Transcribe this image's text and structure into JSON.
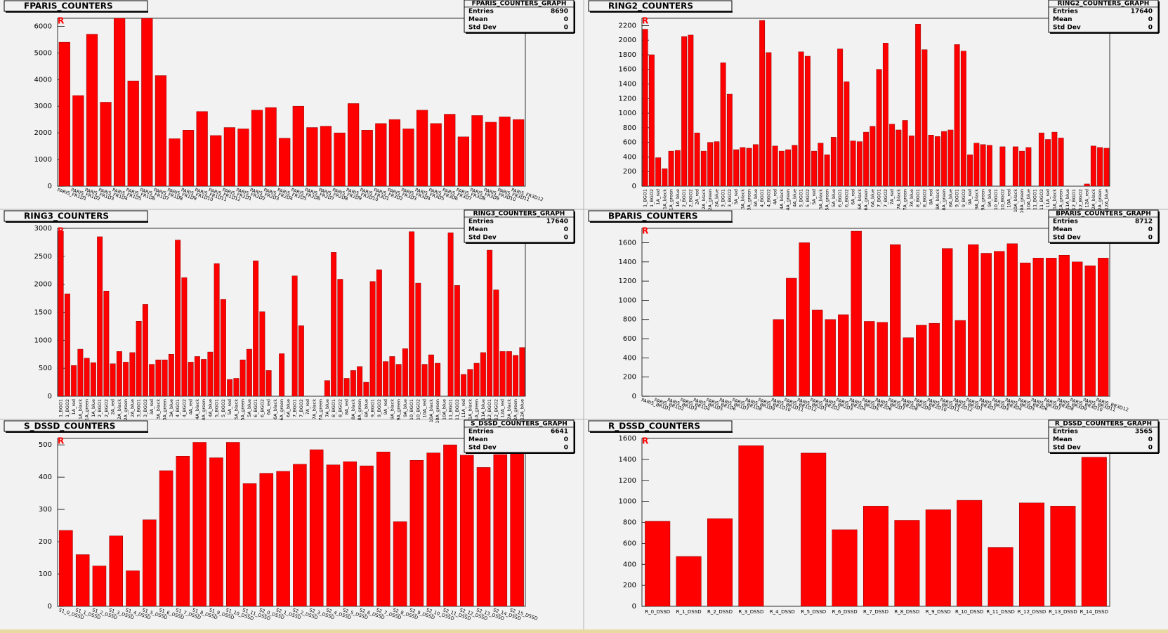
{
  "chart_data": [
    {
      "type": "bar",
      "title": "FPARIS_COUNTERS",
      "corner_mark": "R",
      "color": "#ff0000",
      "categories": [
        "PARIS_FR1D1",
        "PARIS_FR1D2",
        "PARIS_FR1D3",
        "PARIS_FR1D4",
        "PARIS_FR1D5",
        "PARIS_FR1D6",
        "PARIS_FR1D7",
        "PARIS_FR1D8",
        "PARIS_FR1D9",
        "PARIS_FR1D10",
        "PARIS_FR1D11",
        "PARIS_FR1D12",
        "PARIS_FR2D1",
        "PARIS_FR2D2",
        "PARIS_FR2D3",
        "PARIS_FR2D4",
        "PARIS_FR2D5",
        "PARIS_FR2D6",
        "PARIS_FR2D7",
        "PARIS_FR2D8",
        "PARIS_FR2D9",
        "PARIS_FR2D10",
        "PARIS_FR3D1",
        "PARIS_FR3D2",
        "PARIS_FR3D3",
        "PARIS_FR3D4",
        "PARIS_FR3D5",
        "PARIS_FR3D6",
        "PARIS_FR3D7",
        "PARIS_FR3D8",
        "PARIS_FR3D9",
        "PARIS_FR3D10",
        "PARIS_FR3D11",
        "PARIS_FR3D12"
      ],
      "values": [
        5400,
        3400,
        5700,
        3150,
        6300,
        3950,
        6300,
        4150,
        1780,
        2100,
        2800,
        1900,
        2200,
        2150,
        2850,
        2950,
        1800,
        3000,
        2200,
        2250,
        2000,
        3100,
        2100,
        2350,
        2500,
        2150,
        2850,
        2350,
        2700,
        1850,
        2650,
        2400,
        2600,
        2500
      ],
      "ylim": [
        0,
        6300
      ],
      "yticks": [
        0,
        1000,
        2000,
        3000,
        4000,
        5000,
        6000
      ],
      "stats": {
        "title": "FPARIS_COUNTERS_GRAPH",
        "labels": [
          "Entries",
          "Mean",
          "Std Dev"
        ],
        "values": [
          8690,
          0,
          0
        ]
      }
    },
    {
      "type": "bar",
      "title": "RING2_COUNTERS",
      "corner_mark": "R",
      "color": "#ff0000",
      "categories": [
        "1_BGO1",
        "1_BGO2",
        "1A_red",
        "1A_black",
        "1A_green",
        "1A_blue",
        "2_BGO1",
        "2_BGO2",
        "2A_red",
        "2A_black",
        "2A_green",
        "2A_blue",
        "3_BGO1",
        "3_BGO2",
        "3A_red",
        "3A_black",
        "3A_green",
        "3A_blue",
        "4_BGO1",
        "4_BGO2",
        "4A_red",
        "4A_black",
        "4A_green",
        "4A_blue",
        "5_BGO1",
        "5_BGO2",
        "5A_red",
        "5A_black",
        "5A_green",
        "5A_blue",
        "6_BGO1",
        "6_BGO2",
        "6A_red",
        "6A_black",
        "6A_green",
        "6A_blue",
        "7_BGO1",
        "7_BGO2",
        "7A_red",
        "7A_black",
        "7A_green",
        "7A_blue",
        "8_BGO1",
        "8_BGO2",
        "8A_red",
        "8A_black",
        "8A_green",
        "8A_blue",
        "9_BGO1",
        "9_BGO2",
        "9A_red",
        "9A_black",
        "9A_green",
        "9A_blue",
        "10_BGO1",
        "10_BGO2",
        "10A_red",
        "10A_black",
        "10A_green",
        "10A_blue",
        "11_BGO1",
        "11_BGO2",
        "11A_red",
        "11A_black",
        "11A_green",
        "11A_blue",
        "12_BGO1",
        "12_BGO2",
        "12A_red",
        "12A_black",
        "12A_green",
        "12A_blue"
      ],
      "values": [
        2150,
        1800,
        390,
        240,
        480,
        490,
        2050,
        2070,
        730,
        480,
        600,
        610,
        1690,
        1260,
        500,
        530,
        520,
        570,
        2270,
        1830,
        550,
        480,
        500,
        560,
        1840,
        1780,
        480,
        590,
        430,
        670,
        1880,
        1430,
        620,
        610,
        740,
        820,
        1600,
        1960,
        850,
        770,
        900,
        690,
        2220,
        1870,
        700,
        680,
        750,
        770,
        1940,
        1850,
        430,
        590,
        570,
        560,
        0,
        540,
        0,
        540,
        480,
        530,
        0,
        730,
        640,
        740,
        660,
        0,
        0,
        0,
        30,
        550,
        530,
        520
      ],
      "ylim": [
        0,
        2300
      ],
      "yticks": [
        0,
        200,
        400,
        600,
        800,
        1000,
        1200,
        1400,
        1600,
        1800,
        2000,
        2200
      ],
      "stats": {
        "title": "RING2_COUNTERS_GRAPH",
        "labels": [
          "Entries",
          "Mean",
          "Std Dev"
        ],
        "values": [
          17640,
          0,
          0
        ]
      }
    },
    {
      "type": "bar",
      "title": "RING3_COUNTERS",
      "corner_mark": "R",
      "color": "#ff0000",
      "categories": [
        "1_BGO1",
        "1_BGO2",
        "1A_red",
        "1A_black",
        "1A_green",
        "1A_blue",
        "2_BGO1",
        "2_BGO2",
        "2A_red",
        "2A_black",
        "2A_green",
        "2A_blue",
        "3_BGO1",
        "3_BGO2",
        "3A_red",
        "3A_black",
        "3A_green",
        "3A_blue",
        "4_BGO1",
        "4_BGO2",
        "4A_red",
        "4A_black",
        "4A_green",
        "4A_blue",
        "5_BGO1",
        "5_BGO2",
        "5A_red",
        "5A_black",
        "5A_green",
        "5A_blue",
        "6_BGO1",
        "6_BGO2",
        "6A_red",
        "6A_black",
        "6A_green",
        "6A_blue",
        "7_BGO1",
        "7_BGO2",
        "7A_red",
        "7A_black",
        "7A_green",
        "7A_blue",
        "8_BGO1",
        "8_BGO2",
        "8A_red",
        "8A_black",
        "8A_green",
        "8A_blue",
        "9_BGO1",
        "9_BGO2",
        "9A_red",
        "9A_black",
        "9A_green",
        "9A_blue",
        "10_BGO1",
        "10_BGO2",
        "10A_red",
        "10A_black",
        "10A_green",
        "10A_blue",
        "11_BGO1",
        "11_BGO2",
        "11A_red",
        "11A_black",
        "11A_green",
        "11A_blue",
        "12_BGO1",
        "12_BGO2",
        "12A_red",
        "12A_black",
        "12A_green",
        "12A_blue"
      ],
      "values": [
        2950,
        1830,
        550,
        840,
        680,
        600,
        2850,
        1880,
        580,
        800,
        610,
        780,
        1340,
        1640,
        570,
        650,
        650,
        750,
        2790,
        2120,
        610,
        710,
        660,
        790,
        2370,
        1730,
        300,
        320,
        650,
        840,
        2420,
        1510,
        460,
        0,
        760,
        0,
        2150,
        1260,
        0,
        0,
        0,
        280,
        2570,
        2090,
        320,
        460,
        530,
        250,
        2050,
        2260,
        620,
        710,
        570,
        850,
        2940,
        2020,
        570,
        740,
        590,
        0,
        2920,
        1980,
        390,
        480,
        590,
        780,
        2610,
        1900,
        800,
        800,
        730,
        870
      ],
      "ylim": [
        0,
        3000
      ],
      "yticks": [
        0,
        500,
        1000,
        1500,
        2000,
        2500,
        3000
      ],
      "stats": {
        "title": "RING3_COUNTERS_GRAPH",
        "labels": [
          "Entries",
          "Mean",
          "Std Dev"
        ],
        "values": [
          17640,
          0,
          0
        ]
      }
    },
    {
      "type": "bar",
      "title": "BPARIS_COUNTERS",
      "corner_mark": "R",
      "color": "#ff0000",
      "categories": [
        "PARIS_BR1D1",
        "PARIS_BR1D2",
        "PARIS_BR1D3",
        "PARIS_BR1D4",
        "PARIS_BR1D5",
        "PARIS_BR1D6",
        "PARIS_BR1D7",
        "PARIS_BR1D8",
        "PARIS_BR1D9",
        "PARIS_BR1D10",
        "PARIS_BR1D11",
        "PARIS_BR1D12",
        "PARIS_BR2D1",
        "PARIS_BR2D2",
        "PARIS_BR2D3",
        "PARIS_BR2D4",
        "PARIS_BR2D5",
        "PARIS_BR2D6",
        "PARIS_BR2D7",
        "PARIS_BR2D8",
        "PARIS_BR2D9",
        "PARIS_BR2D10",
        "PARIS_BR2D11",
        "PARIS_BR2D12",
        "PARIS_BR3D1",
        "PARIS_BR3D2",
        "PARIS_BR3D3",
        "PARIS_BR3D4",
        "PARIS_BR3D5",
        "PARIS_BR3D6",
        "PARIS_BR3D7",
        "PARIS_BR3D8",
        "PARIS_BR3D9",
        "PARIS_BR3D10",
        "PARIS_BR3D11",
        "PARIS_BR3D12"
      ],
      "values": [
        0,
        0,
        0,
        0,
        0,
        0,
        0,
        0,
        0,
        0,
        800,
        1230,
        1600,
        900,
        800,
        850,
        1720,
        780,
        770,
        1580,
        610,
        740,
        760,
        1540,
        790,
        1580,
        1490,
        1510,
        1590,
        1390,
        1440,
        1440,
        1470,
        1400,
        1360,
        1440
      ],
      "ylim": [
        0,
        1750
      ],
      "yticks": [
        0,
        200,
        400,
        600,
        800,
        1000,
        1200,
        1400,
        1600
      ],
      "stats": {
        "title": "BPARIS_COUNTERS_GRAPH",
        "labels": [
          "Entries",
          "Mean",
          "Std Dev"
        ],
        "values": [
          8712,
          0,
          0
        ]
      }
    },
    {
      "type": "bar",
      "title": "S_DSSD_COUNTERS",
      "corner_mark": "R",
      "color": "#ff0000",
      "categories": [
        "S1_0_DSSD",
        "S1_1_DSSD",
        "S1_2_DSSD",
        "S1_3_DSSD",
        "S1_4_DSSD",
        "S1_5_DSSD",
        "S1_6_DSSD",
        "S1_7_DSSD",
        "S1_8_DSSD",
        "S1_9_DSSD",
        "S1_10_DSSD",
        "S1_11_DSSD",
        "S2_0_DSSD",
        "S2_1_DSSD",
        "S2_2_DSSD",
        "S2_3_DSSD",
        "S2_4_DSSD",
        "S2_5_DSSD",
        "S2_6_DSSD",
        "S2_7_DSSD",
        "S2_8_DSSD",
        "S2_9_DSSD",
        "S2_10_DSSD",
        "S2_11_DSSD",
        "S2_12_DSSD",
        "S2_13_DSSD",
        "S2_14_DSSD",
        "S2_15_DSSD"
      ],
      "values": [
        235,
        160,
        125,
        218,
        110,
        268,
        420,
        465,
        508,
        460,
        508,
        380,
        412,
        418,
        440,
        485,
        438,
        448,
        435,
        478,
        262,
        452,
        475,
        500,
        468,
        430,
        470,
        490
      ],
      "ylim": [
        0,
        520
      ],
      "yticks": [
        0,
        100,
        200,
        300,
        400,
        500
      ],
      "stats": {
        "title": "S_DSSD_COUNTERS_GRAPH",
        "labels": [
          "Entries",
          "Mean",
          "Std Dev"
        ],
        "values": [
          6641,
          0,
          0
        ]
      }
    },
    {
      "type": "bar",
      "title": "R_DSSD_COUNTERS",
      "corner_mark": "R",
      "color": "#ff0000",
      "categories": [
        "R_0_DSSD",
        "R_1_DSSD",
        "R_2_DSSD",
        "R_3_DSSD",
        "R_4_DSSD",
        "R_5_DSSD",
        "R_6_DSSD",
        "R_7_DSSD",
        "R_8_DSSD",
        "R_9_DSSD",
        "R_10_DSSD",
        "R_11_DSSD",
        "R_12_DSSD",
        "R_13_DSSD",
        "R_14_DSSD"
      ],
      "values": [
        810,
        475,
        835,
        1530,
        0,
        1460,
        730,
        955,
        820,
        920,
        1010,
        560,
        985,
        955,
        1420
      ],
      "ylim": [
        0,
        1600
      ],
      "yticks": [
        0,
        200,
        400,
        600,
        800,
        1000,
        1200,
        1400,
        1600
      ],
      "stats": {
        "title": "R_DSSD_COUNTERS_GRAPH",
        "labels": [
          "Entries",
          "Mean",
          "Std Dev"
        ],
        "values": [
          3565,
          0,
          0
        ]
      }
    }
  ]
}
